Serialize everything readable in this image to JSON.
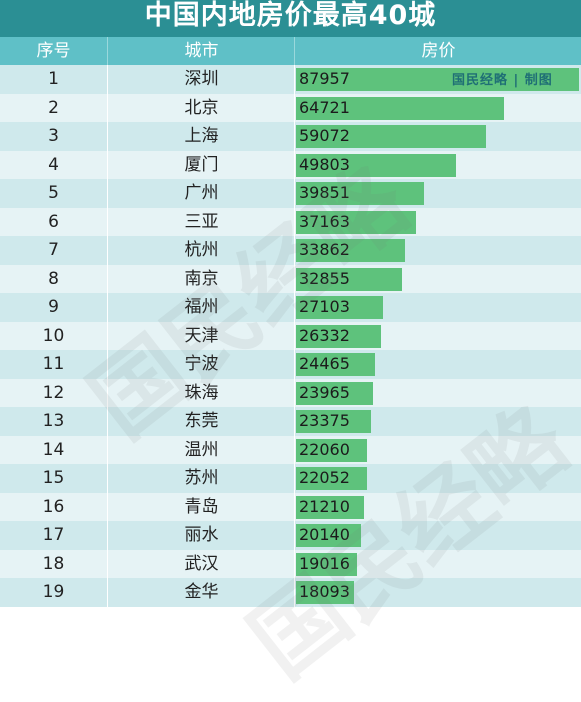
{
  "title": "中国内地房价最高40城",
  "headers": {
    "rank": "序号",
    "city": "城市",
    "price": "房价"
  },
  "credit": "国民经略 | 制图",
  "watermark": "国民经略",
  "colors": {
    "title_bg": "#2b8f94",
    "header_bg": "#5fc0c7",
    "row_odd": "#cfe9ec",
    "row_even": "#e6f3f5",
    "bar": "#5ec27c"
  },
  "chart_data": {
    "type": "bar",
    "title": "中国内地房价最高40城",
    "categories": [
      "深圳",
      "北京",
      "上海",
      "厦门",
      "广州",
      "三亚",
      "杭州",
      "南京",
      "福州",
      "天津",
      "宁波",
      "珠海",
      "东莞",
      "温州",
      "苏州",
      "青岛",
      "丽水",
      "武汉",
      "金华"
    ],
    "ranks": [
      1,
      2,
      3,
      4,
      5,
      6,
      7,
      8,
      9,
      10,
      11,
      12,
      13,
      14,
      15,
      16,
      17,
      18,
      19
    ],
    "values": [
      87957,
      64721,
      59072,
      49803,
      39851,
      37163,
      33862,
      32855,
      27103,
      26332,
      24465,
      23965,
      23375,
      22060,
      22052,
      21210,
      20140,
      19016,
      18093
    ],
    "xlabel": "",
    "ylabel": "房价",
    "xlim": [
      0,
      87957
    ]
  }
}
